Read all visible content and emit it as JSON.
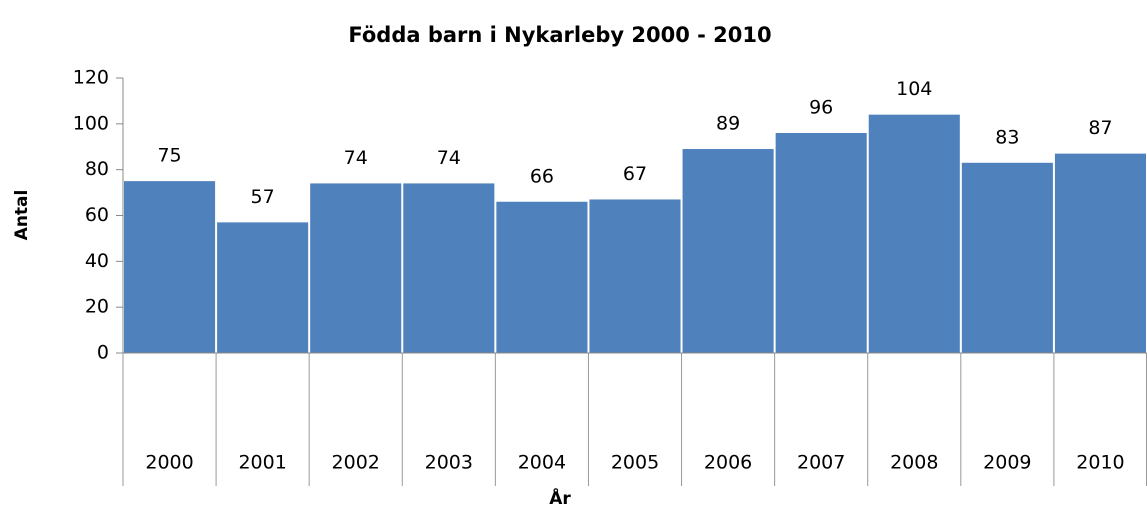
{
  "chart_data": {
    "type": "bar",
    "title": "Födda barn i Nykarleby 2000 - 2010",
    "x_label": "År",
    "y_label": "Antal",
    "categories": [
      "2000",
      "2001",
      "2002",
      "2003",
      "2004",
      "2005",
      "2006",
      "2007",
      "2008",
      "2009",
      "2010"
    ],
    "values": [
      75,
      57,
      74,
      74,
      66,
      67,
      89,
      96,
      104,
      83,
      87
    ],
    "color": "#4f81bd",
    "ylim": [
      0,
      120
    ],
    "yticks": [
      0,
      20,
      40,
      60,
      80,
      100,
      120
    ],
    "grid": false
  }
}
